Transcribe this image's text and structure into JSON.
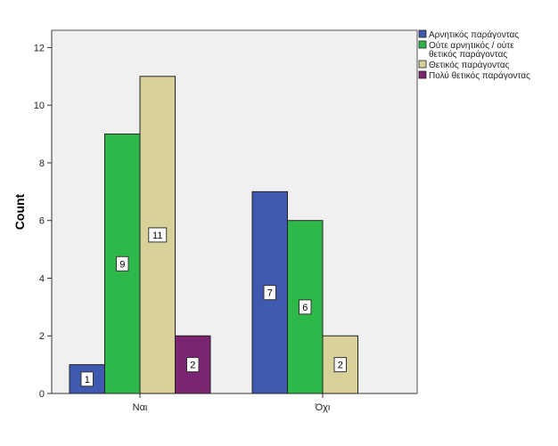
{
  "chart_data": {
    "type": "bar",
    "title": "",
    "xlabel": "",
    "ylabel": "Count",
    "ylim": [
      0,
      12.6
    ],
    "yticks": [
      0,
      2,
      4,
      6,
      8,
      10,
      12
    ],
    "grid": false,
    "legend_position": "right",
    "categories": [
      "Ναι",
      "Όχι"
    ],
    "series": [
      {
        "name": "Αρνητικός παράγοντας",
        "color": "#3f58b0",
        "values": [
          1,
          7
        ]
      },
      {
        "name": "Ούτε αρνητικός / ούτε θετικός παράγοντας",
        "lines": [
          "Ούτε αρνητικός / ούτε",
          "θετικός παράγοντας"
        ],
        "color": "#2eb84a",
        "values": [
          9,
          6
        ]
      },
      {
        "name": "Θετικός παράγοντας",
        "color": "#d8d29a",
        "values": [
          11,
          2
        ]
      },
      {
        "name": "Πολύ θετικός παράγοντας",
        "color": "#7b2470",
        "values": [
          2,
          null
        ]
      }
    ]
  }
}
